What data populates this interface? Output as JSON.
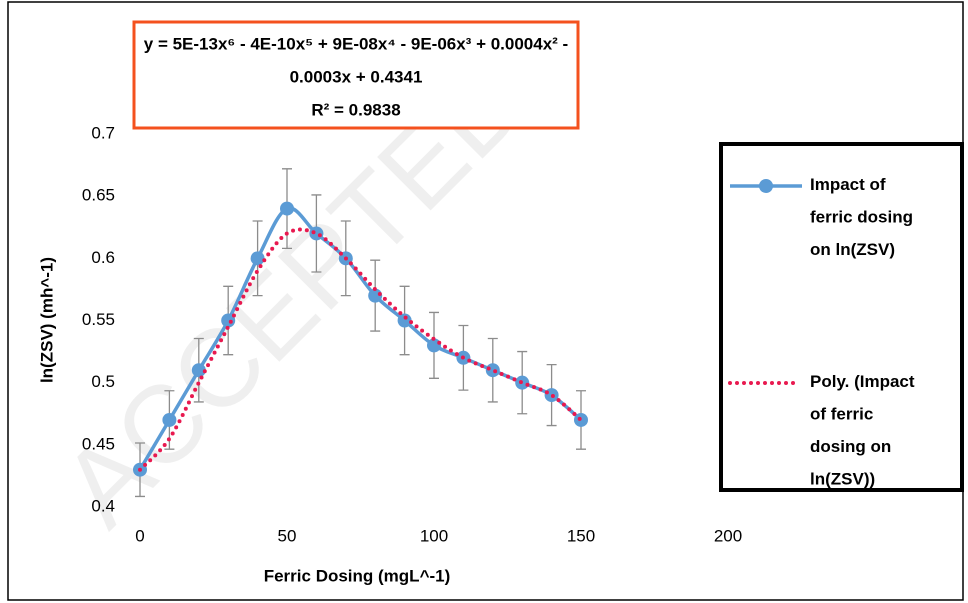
{
  "chart_data": {
    "type": "line",
    "x_label": "Ferric Dosing (mgL^-1)",
    "y_label": "ln(ZSV) (mh^-1)",
    "equation": [
      "y = 5E-13x⁶ - 4E-10x⁵ + 9E-08x⁴ - 9E-06x³ + 0.0004x² -",
      "0.0003x + 0.4341",
      "R² = 0.9838"
    ],
    "watermark": "ACCEPTED",
    "x": [
      0,
      10,
      20,
      30,
      40,
      50,
      60,
      70,
      80,
      90,
      100,
      110,
      120,
      130,
      140,
      150
    ],
    "series": [
      {
        "name": "Impact of ferric dosing on ln(ZSV)",
        "color": "#5b9bd5",
        "style": "smooth-marker",
        "values": [
          0.43,
          0.47,
          0.51,
          0.55,
          0.6,
          0.64,
          0.62,
          0.6,
          0.57,
          0.55,
          0.53,
          0.52,
          0.51,
          0.5,
          0.49,
          0.47
        ],
        "errors": [
          0.0215,
          0.0235,
          0.0255,
          0.0275,
          0.03,
          0.032,
          0.031,
          0.03,
          0.0285,
          0.0275,
          0.0265,
          0.026,
          0.0255,
          0.025,
          0.0245,
          0.0235
        ]
      },
      {
        "name": "Poly. (Impact of ferric dosing on ln(ZSV))",
        "color": "#e8194f",
        "style": "dotted",
        "values": [
          0.43,
          0.455,
          0.5,
          0.545,
          0.59,
          0.62,
          0.62,
          0.6,
          0.575,
          0.553,
          0.535,
          0.52,
          0.51,
          0.5,
          0.49,
          0.47
        ]
      }
    ],
    "xlim": [
      0,
      200
    ],
    "xticks": [
      0,
      50,
      100,
      150,
      200
    ],
    "ylim": [
      0.4,
      0.7
    ],
    "yticks": [
      0.4,
      0.45,
      0.5,
      0.55,
      0.6,
      0.65,
      0.7
    ],
    "grid": false,
    "legend": "right"
  }
}
